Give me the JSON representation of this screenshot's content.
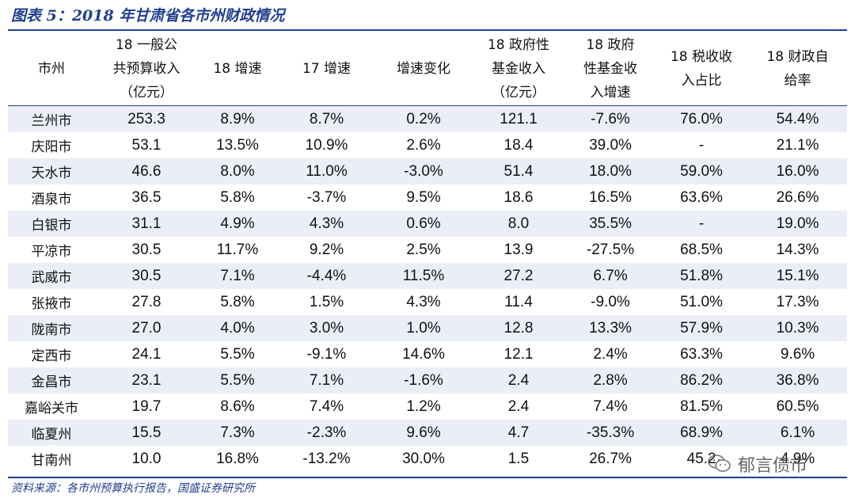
{
  "title": "图表 5：2018 年甘肃省各市州财政情况",
  "source": "资料来源：各市州预算执行报告，国盛证券研究所",
  "watermark": "郁言债市",
  "table": {
    "headers": [
      "市州",
      "18 一般公\n共预算收入\n（亿元）",
      "18 增速",
      "17 增速",
      "增速变化",
      "18 政府性\n基金收入\n（亿元）",
      "18 政府\n性基金收\n入增速",
      "18 税收收\n入占比",
      "18 财政自\n给率"
    ],
    "rows": [
      [
        "兰州市",
        "253.3",
        "8.9%",
        "8.7%",
        "0.2%",
        "121.1",
        "-7.6%",
        "76.0%",
        "54.4%"
      ],
      [
        "庆阳市",
        "53.1",
        "13.5%",
        "10.9%",
        "2.6%",
        "18.4",
        "39.0%",
        "-",
        "21.1%"
      ],
      [
        "天水市",
        "46.6",
        "8.0%",
        "11.0%",
        "-3.0%",
        "51.4",
        "18.0%",
        "59.0%",
        "16.0%"
      ],
      [
        "酒泉市",
        "36.5",
        "5.8%",
        "-3.7%",
        "9.5%",
        "18.6",
        "16.5%",
        "63.6%",
        "26.6%"
      ],
      [
        "白银市",
        "31.1",
        "4.9%",
        "4.3%",
        "0.6%",
        "8.0",
        "35.5%",
        "-",
        "19.0%"
      ],
      [
        "平凉市",
        "30.5",
        "11.7%",
        "9.2%",
        "2.5%",
        "13.9",
        "-27.5%",
        "68.5%",
        "14.3%"
      ],
      [
        "武威市",
        "30.5",
        "7.1%",
        "-4.4%",
        "11.5%",
        "27.2",
        "6.7%",
        "51.8%",
        "15.1%"
      ],
      [
        "张掖市",
        "27.8",
        "5.8%",
        "1.5%",
        "4.3%",
        "11.4",
        "-9.0%",
        "51.0%",
        "17.3%"
      ],
      [
        "陇南市",
        "27.0",
        "4.0%",
        "3.0%",
        "1.0%",
        "12.8",
        "13.3%",
        "57.9%",
        "10.3%"
      ],
      [
        "定西市",
        "24.1",
        "5.5%",
        "-9.1%",
        "14.6%",
        "12.1",
        "2.4%",
        "63.3%",
        "9.6%"
      ],
      [
        "金昌市",
        "23.1",
        "5.5%",
        "7.1%",
        "-1.6%",
        "2.4",
        "2.8%",
        "86.2%",
        "36.8%"
      ],
      [
        "嘉峪关市",
        "19.7",
        "8.6%",
        "7.4%",
        "1.2%",
        "2.4",
        "7.4%",
        "81.5%",
        "60.5%"
      ],
      [
        "临夏州",
        "15.5",
        "7.3%",
        "-2.3%",
        "9.6%",
        "4.7",
        "-35.3%",
        "68.9%",
        "6.1%"
      ],
      [
        "甘南州",
        "10.0",
        "16.8%",
        "-13.2%",
        "30.0%",
        "1.5",
        "26.7%",
        "45.2",
        "4.9%"
      ]
    ]
  }
}
